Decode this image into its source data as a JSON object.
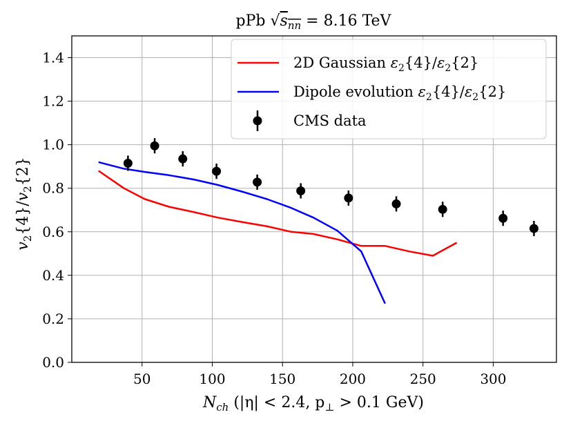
{
  "chart_data": {
    "type": "line",
    "title": "pPb √s_nn = 8.16 TeV",
    "title_parts": {
      "prefix": "pPb ",
      "sqrt_sym": "√",
      "sqrt_arg": "s",
      "sqrt_sub": "nn",
      "suffix": " = 8.16 TeV"
    },
    "xlabel": "N_ch (|η| < 2.4, p⊥ > 0.1 GeV)",
    "xlabel_parts": {
      "var": "N",
      "sub": "ch",
      "rest": " (|η| < 2.4, p",
      "perp": "⊥",
      "tail": " > 0.1 GeV)"
    },
    "ylabel": "v2{4}/v2{2}",
    "ylabel_parts": {
      "v": "v",
      "two": "2",
      "four": "{4}/",
      "two_b": "2",
      "close": "{2}"
    },
    "xlim": [
      0,
      345
    ],
    "ylim": [
      0,
      1.5
    ],
    "xticks": [
      50,
      100,
      150,
      200,
      250,
      300
    ],
    "yticks": [
      "0.0",
      "0.2",
      "0.4",
      "0.6",
      "0.8",
      "1.0",
      "1.2",
      "1.4"
    ],
    "grid": true,
    "legend_position": "top-right",
    "series": [
      {
        "name": "2D Gaussian ε2{4}/ε2{2}",
        "label_parts": {
          "main": "2D Gaussian ",
          "eps": "ε",
          "sub": "2",
          "mid": "{4}/",
          "sub2": "2",
          "end": "{2}"
        },
        "kind": "line",
        "color": "#ff0000",
        "x": [
          19,
          37,
          52,
          69,
          87,
          104,
          121,
          139,
          156,
          172,
          189,
          206,
          223,
          240,
          257,
          274
        ],
        "y": [
          0.88,
          0.8,
          0.75,
          0.715,
          0.69,
          0.665,
          0.645,
          0.625,
          0.6,
          0.59,
          0.565,
          0.535,
          0.535,
          0.51,
          0.49,
          0.55
        ]
      },
      {
        "name": "Dipole evolution ε2{4}/ε2{2}",
        "label_parts": {
          "main": "Dipole evolution ",
          "eps": "ε",
          "sub": "2",
          "mid": "{4}/",
          "sub2": "2",
          "end": "{2}"
        },
        "kind": "line",
        "color": "#0000ff",
        "x": [
          19,
          37,
          52,
          69,
          87,
          104,
          121,
          139,
          156,
          172,
          189,
          206,
          223
        ],
        "y": [
          0.92,
          0.89,
          0.875,
          0.86,
          0.84,
          0.815,
          0.785,
          0.75,
          0.71,
          0.665,
          0.605,
          0.51,
          0.27
        ]
      },
      {
        "name": "CMS data",
        "label_parts": {
          "main": "CMS data"
        },
        "kind": "errorbar",
        "color": "#000000",
        "x": [
          40,
          59,
          79,
          103,
          132,
          163,
          197,
          231,
          264,
          307,
          329
        ],
        "y": [
          0.915,
          0.995,
          0.935,
          0.878,
          0.828,
          0.788,
          0.755,
          0.728,
          0.703,
          0.662,
          0.615
        ],
        "err": [
          0.035,
          0.035,
          0.035,
          0.035,
          0.035,
          0.035,
          0.035,
          0.035,
          0.035,
          0.035,
          0.035
        ]
      }
    ]
  }
}
